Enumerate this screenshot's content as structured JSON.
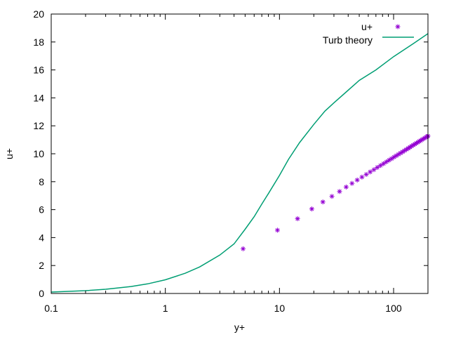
{
  "chart_data": {
    "type": "scatter",
    "xlabel": "y+",
    "ylabel": "u+",
    "xscale": "log",
    "xlim": [
      0.1,
      200
    ],
    "ylim": [
      0,
      20
    ],
    "grid": false,
    "legend_position": "top-right",
    "x_tick_labels": [
      "0.1",
      "1",
      "10",
      "100"
    ],
    "x_tick_values": [
      0.1,
      1,
      10,
      100
    ],
    "y_tick_labels": [
      "0",
      "2",
      "4",
      "6",
      "8",
      "10",
      "12",
      "14",
      "16",
      "18",
      "20"
    ],
    "y_tick_values": [
      0,
      2,
      4,
      6,
      8,
      10,
      12,
      14,
      16,
      18,
      20
    ],
    "series": [
      {
        "name": "u+",
        "style": "points",
        "marker": "asterisk",
        "color": "#9400d3",
        "x": [
          4.8,
          9.6,
          14.4,
          19.2,
          24.0,
          28.8,
          33.6,
          38.4,
          43.2,
          48.0,
          52.8,
          57.6,
          62.4,
          67.2,
          72.0,
          76.8,
          81.6,
          86.4,
          91.2,
          96.0,
          100.8,
          105.6,
          110.4,
          115.2,
          120.0,
          124.8,
          129.6,
          134.4,
          139.2,
          144.0,
          148.8,
          153.6,
          158.4,
          163.2,
          168.0,
          172.8,
          177.6,
          182.4,
          187.2,
          192.0,
          196.8,
          200.0
        ],
        "y": [
          3.2,
          4.53,
          5.35,
          6.05,
          6.55,
          6.95,
          7.3,
          7.62,
          7.88,
          8.12,
          8.33,
          8.52,
          8.7,
          8.86,
          9.02,
          9.16,
          9.29,
          9.42,
          9.54,
          9.65,
          9.76,
          9.86,
          9.96,
          10.05,
          10.14,
          10.23,
          10.31,
          10.39,
          10.47,
          10.55,
          10.62,
          10.69,
          10.76,
          10.82,
          10.89,
          10.95,
          11.01,
          11.07,
          11.12,
          11.18,
          11.23,
          11.27
        ]
      },
      {
        "name": "Turb theory",
        "style": "line",
        "color": "#009e73",
        "x": [
          0.1,
          0.2,
          0.3,
          0.5,
          0.7,
          1.0,
          1.5,
          2.0,
          3.0,
          4.0,
          5.0,
          6.0,
          7.0,
          8.0,
          10.0,
          12.0,
          15.0,
          20.0,
          25.0,
          30.0,
          40.0,
          50.0,
          70.0,
          100.0,
          150.0,
          200.0
        ],
        "y": [
          0.1,
          0.2,
          0.3,
          0.5,
          0.69,
          0.98,
          1.45,
          1.9,
          2.75,
          3.55,
          4.6,
          5.5,
          6.4,
          7.15,
          8.45,
          9.6,
          10.8,
          12.1,
          13.05,
          13.65,
          14.55,
          15.25,
          16.0,
          16.95,
          17.9,
          18.6
        ]
      }
    ]
  }
}
